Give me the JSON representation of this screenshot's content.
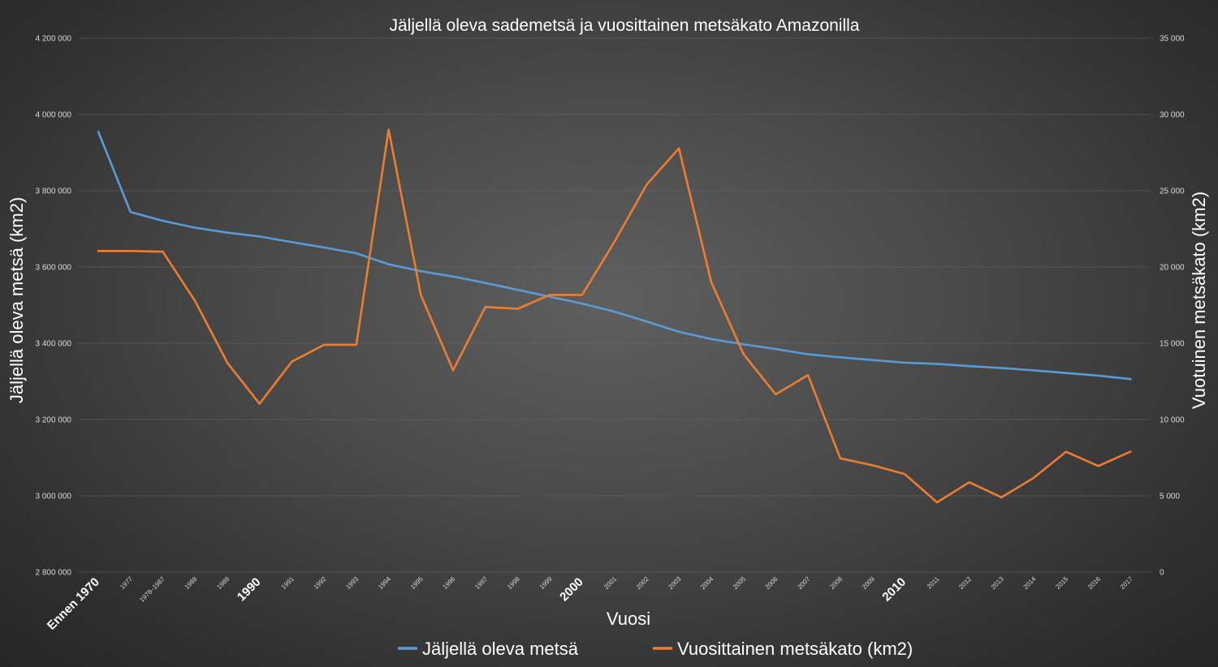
{
  "chart_data": {
    "type": "line",
    "title": "Jäljellä oleva sademetsä ja vuosittainen metsäkato Amazonilla",
    "xlabel": "Vuosi",
    "ylabel": "Jäljellä oleva metsä (km2)",
    "y2label": "Vuotuinen metsäkato (km2)",
    "categories": [
      "Ennen 1970",
      "1977",
      "1978–1987",
      "1988",
      "1989",
      "1990",
      "1991",
      "1992",
      "1993",
      "1994",
      "1995",
      "1996",
      "1997",
      "1998",
      "1999",
      "2000",
      "2001",
      "2002",
      "2003",
      "2004",
      "2005",
      "2006",
      "2007",
      "2008",
      "2009",
      "2010",
      "2011",
      "2012",
      "2013",
      "2014",
      "2015",
      "2016",
      "2017"
    ],
    "major_categories": [
      "Ennen 1970",
      "1990",
      "2000",
      "2010"
    ],
    "ylim": [
      2800000,
      4200000
    ],
    "yticks": [
      2800000,
      3000000,
      3200000,
      3400000,
      3600000,
      3800000,
      4000000,
      4200000
    ],
    "ytick_labels": [
      "2 800 000",
      "3 000 000",
      "3 200 000",
      "3 400 000",
      "3 600 000",
      "3 800 000",
      "4 000 000",
      "4 200 000"
    ],
    "y2lim": [
      0,
      35000
    ],
    "y2ticks": [
      0,
      5000,
      10000,
      15000,
      20000,
      25000,
      30000,
      35000
    ],
    "y2tick_labels": [
      "0",
      "5 000",
      "10 000",
      "15 000",
      "20 000",
      "25 000",
      "30 000",
      "35 000"
    ],
    "grid": true,
    "legend_position": "bottom",
    "series": [
      {
        "name": "Jäljellä oleva metsä",
        "axis": "left",
        "color": "#5b9bd5",
        "values": [
          3955000,
          3744000,
          3721000,
          3703000,
          3690000,
          3680000,
          3665000,
          3651000,
          3636000,
          3607000,
          3589000,
          3575000,
          3558000,
          3540000,
          3522000,
          3504000,
          3483000,
          3457000,
          3430000,
          3411000,
          3397000,
          3385000,
          3371000,
          3363000,
          3356000,
          3349000,
          3346000,
          3340000,
          3335000,
          3329000,
          3322000,
          3315000,
          3306000
        ]
      },
      {
        "name": "Vuosittainen metsäkato (km2)",
        "axis": "right",
        "color": "#ed7d31",
        "values": [
          21050,
          21050,
          21000,
          17770,
          13730,
          11030,
          13790,
          14900,
          14900,
          29000,
          18160,
          13230,
          17380,
          17260,
          18170,
          18170,
          21650,
          25400,
          27770,
          19010,
          14290,
          11650,
          12910,
          7460,
          7000,
          6420,
          4570,
          5890,
          4900,
          6180,
          7890,
          6950,
          7900
        ]
      }
    ]
  }
}
